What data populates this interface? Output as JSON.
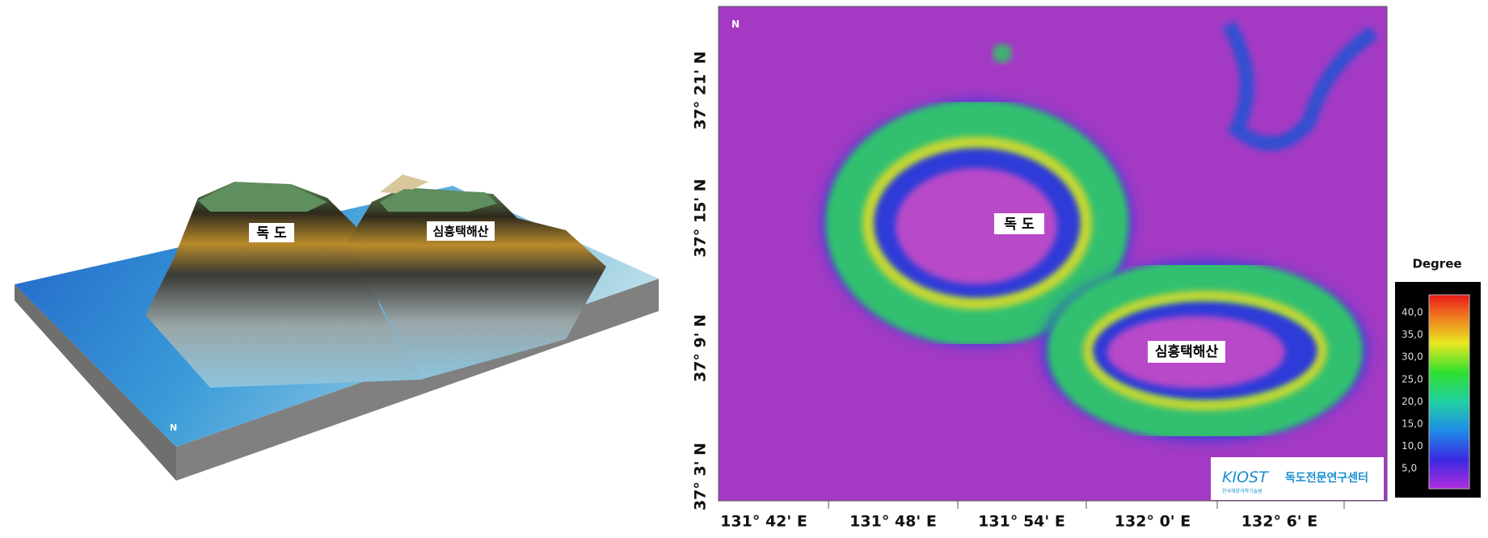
{
  "left_view": {
    "labels": [
      "독 도",
      "심흥택해산"
    ],
    "north": "N"
  },
  "right_map": {
    "labels": [
      "독 도",
      "심흥택해산"
    ],
    "north": "N",
    "y_axis": [
      "37° 21' N",
      "37° 15' N",
      "37° 9' N",
      "37° 3' N"
    ],
    "x_axis": [
      "131° 42' E",
      "131° 48' E",
      "131° 54' E",
      "132° 0' E",
      "132° 6' E"
    ]
  },
  "legend": {
    "title": "Degree",
    "ticks": [
      "40,0",
      "35,0",
      "30,0",
      "25,0",
      "20,0",
      "15,0",
      "10,0",
      "5,0"
    ]
  },
  "logo": {
    "name": "KIOST",
    "subtitle": "한국해양과학기술원",
    "center": "독도전문연구센터"
  }
}
